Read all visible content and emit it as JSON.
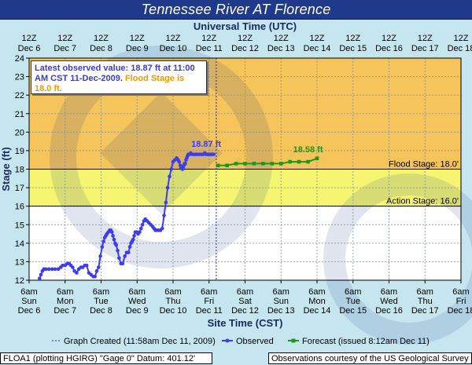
{
  "window": {
    "title": "Tennessee River  AT Florence"
  },
  "tooltip": {
    "observed_part": "Latest observed value: 18.87 ft at 11:00 AM CST 11-Dec-2009.",
    "flood_part": "Flood Stage is 18.0 ft."
  },
  "footer": {
    "left": "FLOA1 (plotting HGIRG)  \"Gage 0\" Datum: 401.12'",
    "right": "Observations courtesy of the  US Geological Survey"
  },
  "colors": {
    "background": "#c6e6ef",
    "flood_zone": "#f5c45a",
    "action_zone": "#f5f572",
    "normal_zone": "#ffffff",
    "observed": "#3c3cf0",
    "forecast": "#1a9a1a",
    "title_bar": "#1f3a8a",
    "text_dark": "#1a2a66"
  },
  "chart_data": {
    "type": "line",
    "title": "Tennessee River  AT Florence",
    "xlabel": "Site Time (CST)",
    "x2label": "Universal Time (UTC)",
    "ylabel": "Stage (ft)",
    "ylim": [
      12,
      24
    ],
    "yticks": [
      12,
      13,
      14,
      15,
      16,
      17,
      18,
      19,
      20,
      21,
      22,
      23,
      24
    ],
    "xlim": [
      0,
      12
    ],
    "top_ticks": [
      {
        "x": 0,
        "line1": "12Z",
        "line2": "Dec 6"
      },
      {
        "x": 1,
        "line1": "12Z",
        "line2": "Dec 7"
      },
      {
        "x": 2,
        "line1": "12Z",
        "line2": "Dec 8"
      },
      {
        "x": 3,
        "line1": "12Z",
        "line2": "Dec 9"
      },
      {
        "x": 4,
        "line1": "12Z",
        "line2": "Dec 10"
      },
      {
        "x": 5,
        "line1": "12Z",
        "line2": "Dec 11"
      },
      {
        "x": 6,
        "line1": "12Z",
        "line2": "Dec 12"
      },
      {
        "x": 7,
        "line1": "12Z",
        "line2": "Dec 13"
      },
      {
        "x": 8,
        "line1": "12Z",
        "line2": "Dec 14"
      },
      {
        "x": 9,
        "line1": "12Z",
        "line2": "Dec 15"
      },
      {
        "x": 10,
        "line1": "12Z",
        "line2": "Dec 16"
      },
      {
        "x": 11,
        "line1": "12Z",
        "line2": "Dec 17"
      },
      {
        "x": 12,
        "line1": "12Z",
        "line2": "Dec 18"
      }
    ],
    "bottom_ticks": [
      {
        "x": 0,
        "line1": "6am",
        "line2": "Sun",
        "line3": "Dec 6"
      },
      {
        "x": 1,
        "line1": "6am",
        "line2": "Mon",
        "line3": "Dec 7"
      },
      {
        "x": 2,
        "line1": "6am",
        "line2": "Tue",
        "line3": "Dec 8"
      },
      {
        "x": 3,
        "line1": "6am",
        "line2": "Wed",
        "line3": "Dec 9"
      },
      {
        "x": 4,
        "line1": "6am",
        "line2": "Thu",
        "line3": "Dec 10"
      },
      {
        "x": 5,
        "line1": "6am",
        "line2": "Fri",
        "line3": "Dec 11"
      },
      {
        "x": 6,
        "line1": "6am",
        "line2": "Sat",
        "line3": "Dec 12"
      },
      {
        "x": 7,
        "line1": "6am",
        "line2": "Sun",
        "line3": "Dec 13"
      },
      {
        "x": 8,
        "line1": "6am",
        "line2": "Mon",
        "line3": "Dec 14"
      },
      {
        "x": 9,
        "line1": "6am",
        "line2": "Tue",
        "line3": "Dec 15"
      },
      {
        "x": 10,
        "line1": "6am",
        "line2": "Wed",
        "line3": "Dec 16"
      },
      {
        "x": 11,
        "line1": "6am",
        "line2": "Thu",
        "line3": "Dec 17"
      },
      {
        "x": 12,
        "line1": "6am",
        "line2": "Fri",
        "line3": "Dec 18"
      }
    ],
    "thresholds": [
      {
        "name": "Flood Stage",
        "value": 18.0,
        "label": "Flood Stage: 18.0'"
      },
      {
        "name": "Action Stage",
        "value": 16.0,
        "label": "Action Stage: 16.0'"
      }
    ],
    "graph_created_x": 5.2,
    "series": [
      {
        "name": "Observed",
        "color": "#3c3cf0",
        "marker": "circle",
        "x": [
          0.29,
          0.33,
          0.37,
          0.41,
          0.47,
          0.55,
          0.64,
          0.72,
          0.81,
          0.88,
          0.93,
          1.0,
          1.06,
          1.11,
          1.16,
          1.21,
          1.26,
          1.32,
          1.38,
          1.44,
          1.49,
          1.55,
          1.6,
          1.66,
          1.72,
          1.78,
          1.83,
          1.88,
          1.93,
          1.98,
          2.03,
          2.07,
          2.1,
          2.13,
          2.16,
          2.2,
          2.24,
          2.27,
          2.3,
          2.33,
          2.36,
          2.39,
          2.42,
          2.46,
          2.5,
          2.55,
          2.6,
          2.66,
          2.71,
          2.76,
          2.8,
          2.83,
          2.86,
          2.89,
          2.92,
          2.95,
          2.99,
          3.03,
          3.07,
          3.11,
          3.15,
          3.19,
          3.23,
          3.28,
          3.33,
          3.38,
          3.43,
          3.47,
          3.51,
          3.55,
          3.6,
          3.65,
          3.7,
          3.75,
          3.8,
          3.85,
          3.9,
          3.95,
          4.0,
          4.05,
          4.1,
          4.14,
          4.17,
          4.2,
          4.22,
          4.24,
          4.26,
          4.28,
          4.3,
          4.32,
          4.34,
          4.36,
          4.38,
          4.4,
          4.42,
          4.45,
          4.49,
          4.53,
          4.57,
          4.61,
          4.65,
          4.7,
          4.75,
          4.8,
          4.84,
          4.88,
          4.92,
          4.96,
          5.0,
          5.04,
          5.07,
          5.1,
          5.13
        ],
        "values": [
          12.1,
          12.3,
          12.5,
          12.6,
          12.6,
          12.6,
          12.6,
          12.6,
          12.6,
          12.7,
          12.8,
          12.8,
          12.9,
          12.9,
          12.8,
          12.7,
          12.5,
          12.4,
          12.6,
          12.7,
          12.7,
          12.8,
          12.8,
          12.4,
          12.3,
          12.2,
          12.2,
          12.5,
          12.7,
          13.3,
          13.8,
          14.1,
          14.3,
          14.4,
          14.5,
          14.6,
          14.7,
          14.7,
          14.6,
          14.4,
          14.2,
          14.0,
          13.9,
          13.6,
          13.2,
          12.9,
          12.9,
          13.3,
          13.5,
          13.5,
          13.8,
          14.0,
          14.1,
          14.2,
          14.4,
          14.6,
          14.6,
          14.5,
          14.6,
          14.8,
          15.0,
          15.2,
          15.3,
          15.2,
          15.1,
          15.0,
          14.9,
          14.8,
          14.7,
          14.7,
          14.7,
          14.7,
          14.8,
          15.5,
          16.2,
          17.0,
          17.6,
          18.0,
          18.4,
          18.5,
          18.6,
          18.5,
          18.4,
          18.2,
          18.1,
          18.1,
          18.0,
          18.1,
          18.2,
          18.3,
          18.3,
          18.5,
          18.6,
          18.7,
          18.8,
          18.8,
          18.87,
          18.8,
          18.8,
          18.8,
          18.8,
          18.8,
          18.8,
          18.8,
          18.8,
          18.87,
          18.8,
          18.8,
          18.8,
          18.8,
          18.8,
          18.8,
          18.8
        ],
        "label": "18.87 ft",
        "label_x": 4.92,
        "label_y": 18.87
      },
      {
        "name": "Forecast",
        "color": "#1a9a1a",
        "marker": "square",
        "x": [
          5.25,
          5.5,
          5.75,
          6.0,
          6.25,
          6.5,
          6.75,
          7.0,
          7.25,
          7.5,
          7.75,
          8.0
        ],
        "values": [
          18.2,
          18.2,
          18.3,
          18.3,
          18.3,
          18.3,
          18.3,
          18.3,
          18.4,
          18.4,
          18.4,
          18.58
        ],
        "label": "18.58 ft",
        "label_x": 7.75,
        "label_y": 18.58
      }
    ],
    "legend": [
      {
        "kind": "dotted-line",
        "label": "Graph Created (11:58am Dec 11, 2009)"
      },
      {
        "kind": "observed",
        "label": "Observed"
      },
      {
        "kind": "forecast",
        "label": "Forecast (issued 8:12am Dec 11)"
      }
    ]
  }
}
